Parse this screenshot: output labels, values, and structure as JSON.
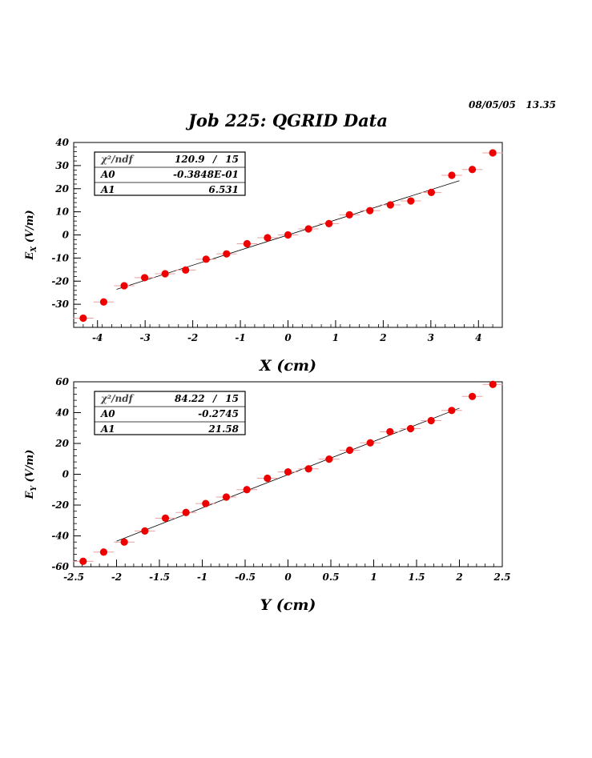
{
  "header": {
    "date": "08/05/05",
    "time": "13.35",
    "title": "Job 225: QGRID Data"
  },
  "chart_data": [
    {
      "type": "scatter",
      "xlabel": "X (cm)",
      "ylabel_main": "E",
      "ylabel_sub": "X",
      "ylabel_rest": " (V/m)",
      "xlim": [
        -4.5,
        4.5
      ],
      "ylim": [
        -40,
        40
      ],
      "xticks": [
        "-4",
        "-3",
        "-2",
        "-1",
        "0",
        "1",
        "2",
        "3",
        "4"
      ],
      "yticks": [
        "40",
        "30",
        "20",
        "10",
        "0",
        "-10",
        "-20",
        "-30"
      ],
      "x": [
        -4.3,
        -3.87,
        -3.44,
        -3.01,
        -2.58,
        -2.15,
        -1.72,
        -1.29,
        -0.86,
        -0.43,
        0.0,
        0.43,
        0.86,
        1.29,
        1.72,
        2.15,
        2.58,
        3.01,
        3.44,
        3.87,
        4.3
      ],
      "y": [
        -36,
        -29,
        -22,
        -18.5,
        -16.8,
        -15.2,
        -10.5,
        -8.2,
        -3.8,
        -1.2,
        0,
        2.6,
        4.9,
        8.7,
        10.5,
        13.0,
        14.7,
        18.4,
        25.8,
        28.3,
        35.5
      ],
      "fit": {
        "x": [
          -3.6,
          3.6
        ],
        "y": [
          -23.55,
          23.47
        ]
      },
      "stats": {
        "chi_label": "χ²/ndf",
        "chi_value": "120.9",
        "sep": "/",
        "ndf": "15",
        "a0_label": "A0",
        "a0_value": "-0.3848E-01",
        "a1_label": "A1",
        "a1_value": "6.531"
      }
    },
    {
      "type": "scatter",
      "xlabel": "Y (cm)",
      "ylabel_main": "E",
      "ylabel_sub": "Y",
      "ylabel_rest": " (V/m)",
      "xlim": [
        -2.5,
        2.5
      ],
      "ylim": [
        -60,
        60
      ],
      "xticks": [
        "-2.5",
        "-2",
        "-1.5",
        "-1",
        "-0.5",
        "0",
        "0.5",
        "1",
        "1.5",
        "2",
        "2.5"
      ],
      "yticks": [
        "60",
        "40",
        "20",
        "0",
        "-20",
        "-40",
        "-60"
      ],
      "x": [
        -2.39,
        -2.15,
        -1.91,
        -1.67,
        -1.43,
        -1.19,
        -0.96,
        -0.72,
        -0.48,
        -0.24,
        0.0,
        0.24,
        0.48,
        0.72,
        0.96,
        1.19,
        1.43,
        1.67,
        1.91,
        2.15,
        2.39
      ],
      "y": [
        -56.5,
        -50.5,
        -44,
        -36.8,
        -28.5,
        -24.8,
        -19.0,
        -14.8,
        -10.0,
        -2.6,
        1.5,
        3.5,
        9.8,
        15.6,
        20.4,
        27.6,
        29.6,
        34.8,
        41.4,
        50.5,
        58.3
      ],
      "fit": {
        "x": [
          -2.0,
          2.0
        ],
        "y": [
          -43.43,
          42.89
        ]
      },
      "stats": {
        "chi_label": "χ²/ndf",
        "chi_value": "84.22",
        "sep": "/",
        "ndf": "15",
        "a0_label": "A0",
        "a0_value": "-0.2745",
        "a1_label": "A1",
        "a1_value": "21.58"
      }
    }
  ]
}
